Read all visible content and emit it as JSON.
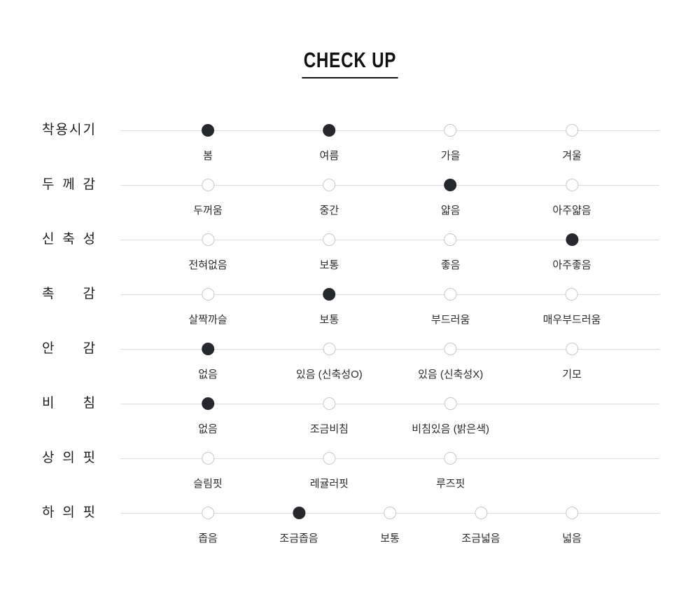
{
  "title": "CHECK UP",
  "colors": {
    "selected_dot": "#26282b",
    "empty_dot_border": "#c7c7c7",
    "track_line": "#dcdcdc",
    "title_text": "#111111"
  },
  "rows": [
    {
      "label": "착용시기",
      "options": [
        {
          "label": "봄",
          "selected": true
        },
        {
          "label": "여름",
          "selected": true
        },
        {
          "label": "가을",
          "selected": false
        },
        {
          "label": "겨울",
          "selected": false
        }
      ]
    },
    {
      "label": "두께감",
      "options": [
        {
          "label": "두꺼움",
          "selected": false
        },
        {
          "label": "중간",
          "selected": false
        },
        {
          "label": "얇음",
          "selected": true
        },
        {
          "label": "아주얇음",
          "selected": false
        }
      ]
    },
    {
      "label": "신축성",
      "options": [
        {
          "label": "전혀없음",
          "selected": false
        },
        {
          "label": "보통",
          "selected": false
        },
        {
          "label": "좋음",
          "selected": false
        },
        {
          "label": "아주좋음",
          "selected": true
        }
      ]
    },
    {
      "label": "촉감",
      "options": [
        {
          "label": "살짝까슬",
          "selected": false
        },
        {
          "label": "보통",
          "selected": true
        },
        {
          "label": "부드러움",
          "selected": false
        },
        {
          "label": "매우부드러움",
          "selected": false
        }
      ]
    },
    {
      "label": "안감",
      "options": [
        {
          "label": "없음",
          "selected": true
        },
        {
          "label": "있음 (신축성O)",
          "selected": false
        },
        {
          "label": "있음 (신축성X)",
          "selected": false
        },
        {
          "label": "기모",
          "selected": false
        }
      ]
    },
    {
      "label": "비침",
      "options": [
        {
          "label": "없음",
          "selected": true
        },
        {
          "label": "조금비침",
          "selected": false
        },
        {
          "label": "비침있음 (밝은색)",
          "selected": false
        }
      ]
    },
    {
      "label": "상의핏",
      "options": [
        {
          "label": "슬림핏",
          "selected": false
        },
        {
          "label": "레귤러핏",
          "selected": false
        },
        {
          "label": "루즈핏",
          "selected": false
        }
      ]
    },
    {
      "label": "하의핏",
      "options": [
        {
          "label": "좁음",
          "selected": false
        },
        {
          "label": "조금좁음",
          "selected": true
        },
        {
          "label": "보통",
          "selected": false
        },
        {
          "label": "조금넓음",
          "selected": false
        },
        {
          "label": "넓음",
          "selected": false
        }
      ]
    }
  ]
}
